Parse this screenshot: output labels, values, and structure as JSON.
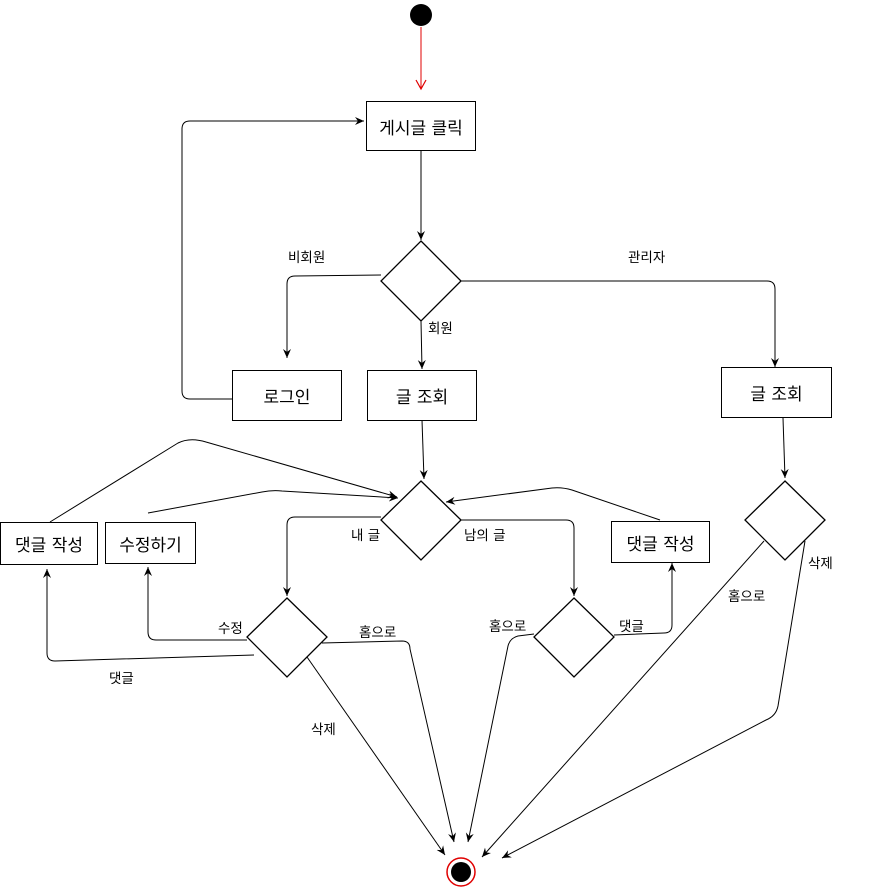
{
  "nodes": {
    "click_post": "게시글 클릭",
    "login": "로그인",
    "view_member": "글 조회",
    "view_admin": "글 조회",
    "write_comment_left": "댓글 작성",
    "edit": "수정하기",
    "write_comment_right": "댓글 작성"
  },
  "labels": {
    "non_member": "비회원",
    "member": "회원",
    "admin": "관리자",
    "my_post": "내 글",
    "others_post": "남의 글",
    "edit_branch": "수정",
    "home_left": "홈으로",
    "comment_left": "댓글",
    "delete_left": "삭제",
    "home_right": "홈으로",
    "comment_right": "댓글",
    "home_admin": "홈으로",
    "delete_admin": "삭제"
  }
}
